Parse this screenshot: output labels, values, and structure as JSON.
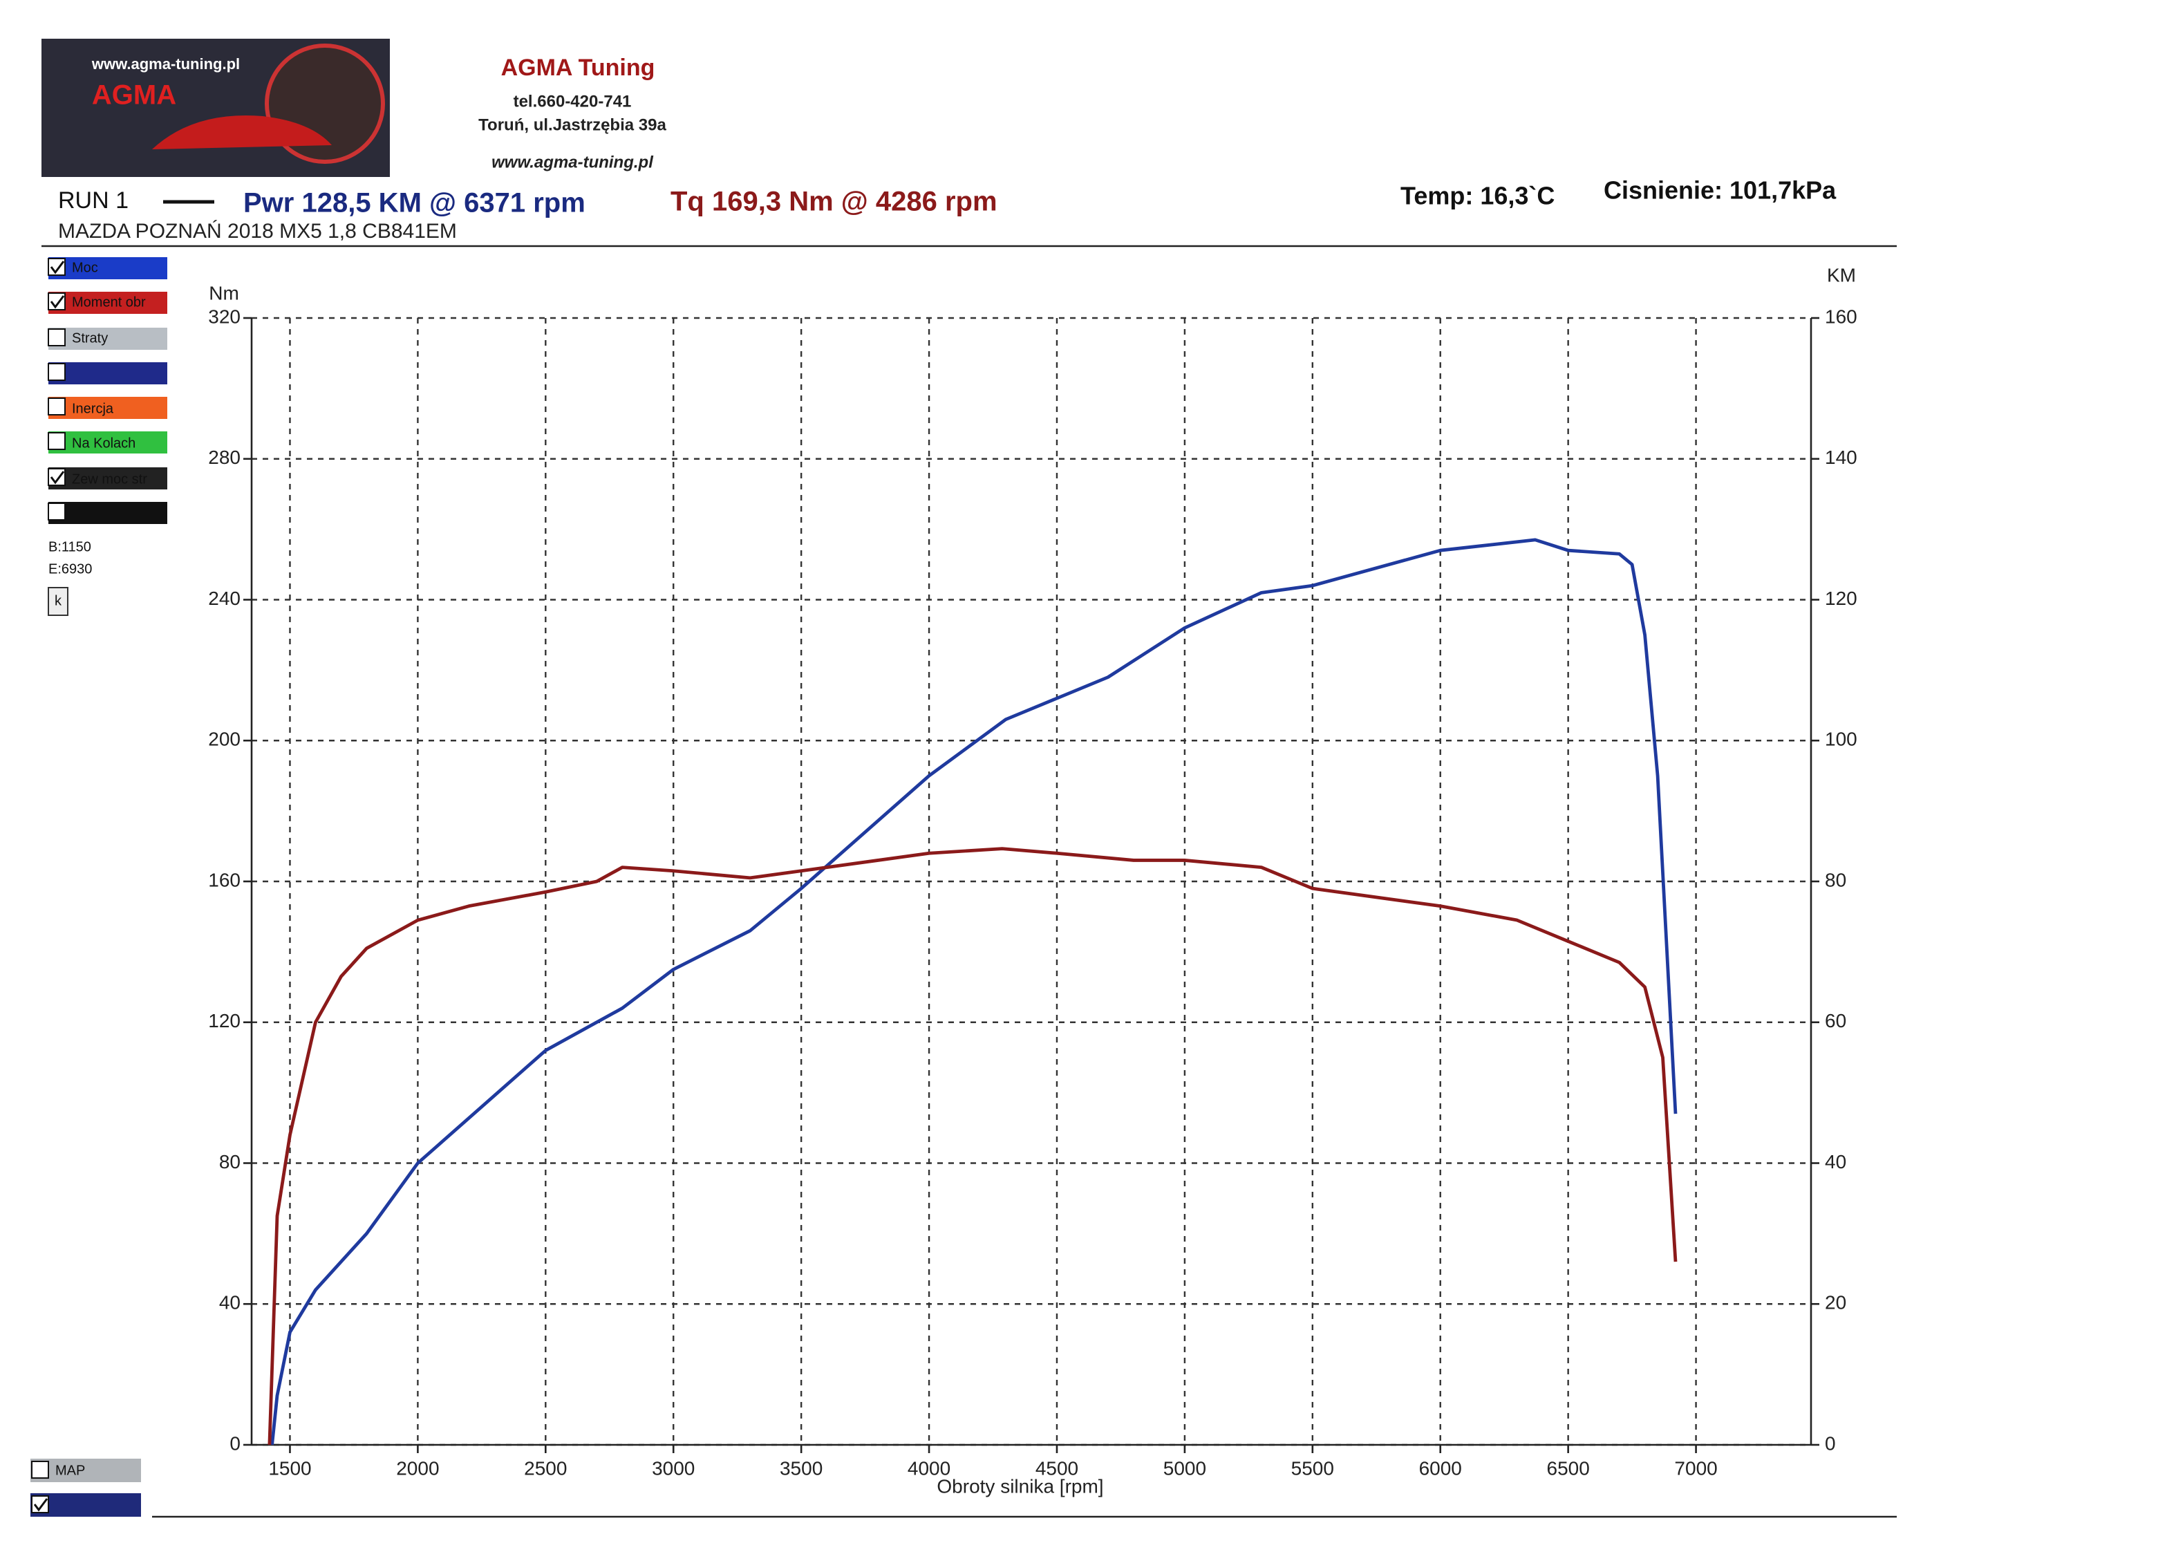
{
  "header": {
    "logo_url": "www.agma-tuning.pl",
    "logo_text": "AGMA",
    "company": "AGMA Tuning",
    "phone": "tel.660-420-741",
    "address": "Toruń, ul.Jastrzębia 39a",
    "website": "www.agma-tuning.pl",
    "run": "RUN 1",
    "power_summary": "Pwr  128,5 KM @ 6371 rpm",
    "torque_summary": "Tq 169,3 Nm @ 4286 rpm",
    "temperature": "Temp: 16,3`C",
    "pressure": "Cisnienie: 101,7kPa",
    "vehicle": "MAZDA POZNAŃ 2018 MX5 1,8 CB841EM"
  },
  "side_panel": {
    "items": [
      "Straty",
      "Inercja",
      "Na Kolach",
      "Zew moc str"
    ],
    "begin": "B:1150",
    "end": "E:6930",
    "button": "k",
    "map": "MAP"
  },
  "chart_data": {
    "type": "line",
    "ylabel": "Nm",
    "y2label": "KM",
    "xlabel": "Obroty silnika [rpm]",
    "xlim": [
      1350,
      7450
    ],
    "xticks": [
      1500,
      2000,
      2500,
      3000,
      3500,
      4000,
      4500,
      5000,
      5500,
      6000,
      6500,
      7000
    ],
    "ylim": [
      0,
      320
    ],
    "yticks": [
      0,
      40,
      80,
      120,
      160,
      200,
      240,
      280,
      320
    ],
    "y2lim": [
      0,
      160
    ],
    "y2ticks": [
      0,
      20,
      40,
      60,
      80,
      100,
      120,
      140,
      160
    ],
    "grid": true,
    "series": [
      {
        "name": "Moc",
        "color": "#1f3a9e",
        "axis": "y2",
        "x": [
          1430,
          1450,
          1500,
          1600,
          1800,
          2000,
          2500,
          2800,
          3000,
          3300,
          3500,
          4000,
          4300,
          4700,
          5000,
          5300,
          5500,
          6000,
          6371,
          6500,
          6700,
          6750,
          6800,
          6850,
          6920
        ],
        "values": [
          0,
          7,
          16,
          22,
          30,
          40,
          56,
          62,
          67.5,
          73,
          79,
          95,
          103,
          109,
          116,
          121,
          122,
          127,
          128.5,
          127,
          126.5,
          125,
          115,
          95,
          47
        ]
      },
      {
        "name": "Moment obr",
        "color": "#8b1a1a",
        "x": [
          1420,
          1450,
          1500,
          1600,
          1700,
          1800,
          2000,
          2200,
          2500,
          2700,
          2800,
          3000,
          3300,
          3500,
          3800,
          4000,
          4286,
          4500,
          4800,
          5000,
          5300,
          5500,
          6000,
          6300,
          6500,
          6700,
          6800,
          6870,
          6920
        ],
        "values": [
          0,
          65,
          88,
          120,
          133,
          141,
          149,
          153,
          157,
          160,
          164,
          163,
          161,
          163,
          166,
          168,
          169.3,
          168,
          166,
          166,
          164,
          158,
          153,
          149,
          143,
          137,
          130,
          110,
          52
        ]
      }
    ]
  }
}
